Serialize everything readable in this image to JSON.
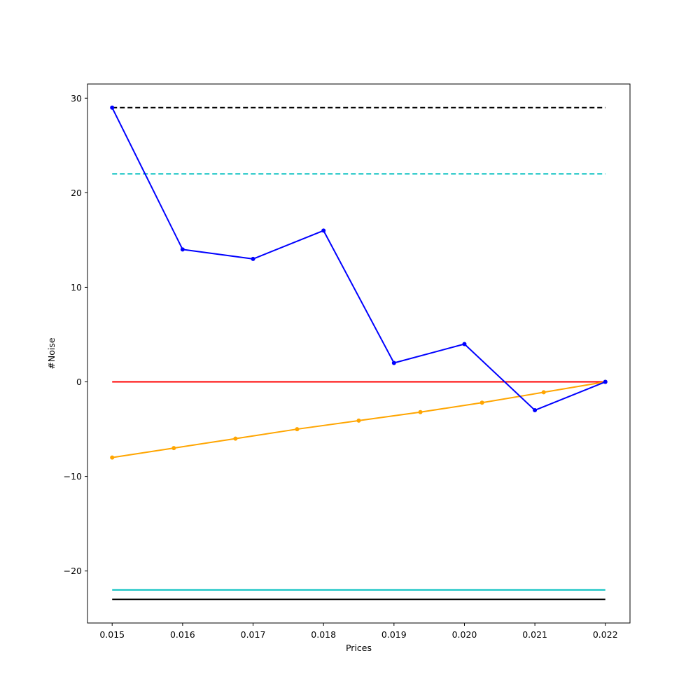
{
  "chart_data": {
    "type": "line",
    "title": "",
    "xlabel": "Prices",
    "ylabel": "#Noise",
    "xlim": [
      0.01465,
      0.02235
    ],
    "ylim": [
      -25.5,
      31.5
    ],
    "grid": false,
    "xticks": [
      {
        "value": 0.015,
        "label": "0.015"
      },
      {
        "value": 0.016,
        "label": "0.016"
      },
      {
        "value": 0.017,
        "label": "0.017"
      },
      {
        "value": 0.018,
        "label": "0.018"
      },
      {
        "value": 0.019,
        "label": "0.019"
      },
      {
        "value": 0.02,
        "label": "0.020"
      },
      {
        "value": 0.021,
        "label": "0.021"
      },
      {
        "value": 0.022,
        "label": "0.022"
      }
    ],
    "yticks": [
      {
        "value": 30,
        "label": "30"
      },
      {
        "value": 20,
        "label": "20"
      },
      {
        "value": 10,
        "label": "10"
      },
      {
        "value": 0,
        "label": "0"
      },
      {
        "value": -10,
        "label": "−10"
      },
      {
        "value": -20,
        "label": "−20"
      }
    ],
    "series": [
      {
        "color": "#000000",
        "dash": true,
        "markers": false,
        "x": [
          0.015,
          0.022
        ],
        "y": [
          29,
          29
        ]
      },
      {
        "color": "#00bfbf",
        "dash": true,
        "markers": false,
        "x": [
          0.015,
          0.022
        ],
        "y": [
          22,
          22
        ]
      },
      {
        "color": "#ff0000",
        "dash": false,
        "markers": false,
        "x": [
          0.015,
          0.022
        ],
        "y": [
          0,
          0
        ]
      },
      {
        "color": "#00bfbf",
        "dash": false,
        "markers": false,
        "x": [
          0.015,
          0.022
        ],
        "y": [
          -22,
          -22
        ]
      },
      {
        "color": "#000000",
        "dash": false,
        "markers": false,
        "x": [
          0.015,
          0.022
        ],
        "y": [
          -23,
          -23
        ]
      },
      {
        "color": "#ffa500",
        "dash": false,
        "markers": true,
        "x": [
          0.015,
          0.015875,
          0.01675,
          0.017625,
          0.0185,
          0.019375,
          0.02025,
          0.021125,
          0.022
        ],
        "y": [
          -8,
          -7,
          -6,
          -5,
          -4.1,
          -3.2,
          -2.2,
          -1.1,
          0
        ]
      },
      {
        "color": "#0000ff",
        "dash": false,
        "markers": true,
        "x": [
          0.015,
          0.016,
          0.017,
          0.018,
          0.019,
          0.02,
          0.021,
          0.022
        ],
        "y": [
          29,
          14,
          13,
          16,
          2,
          4,
          -3,
          0
        ]
      }
    ]
  }
}
